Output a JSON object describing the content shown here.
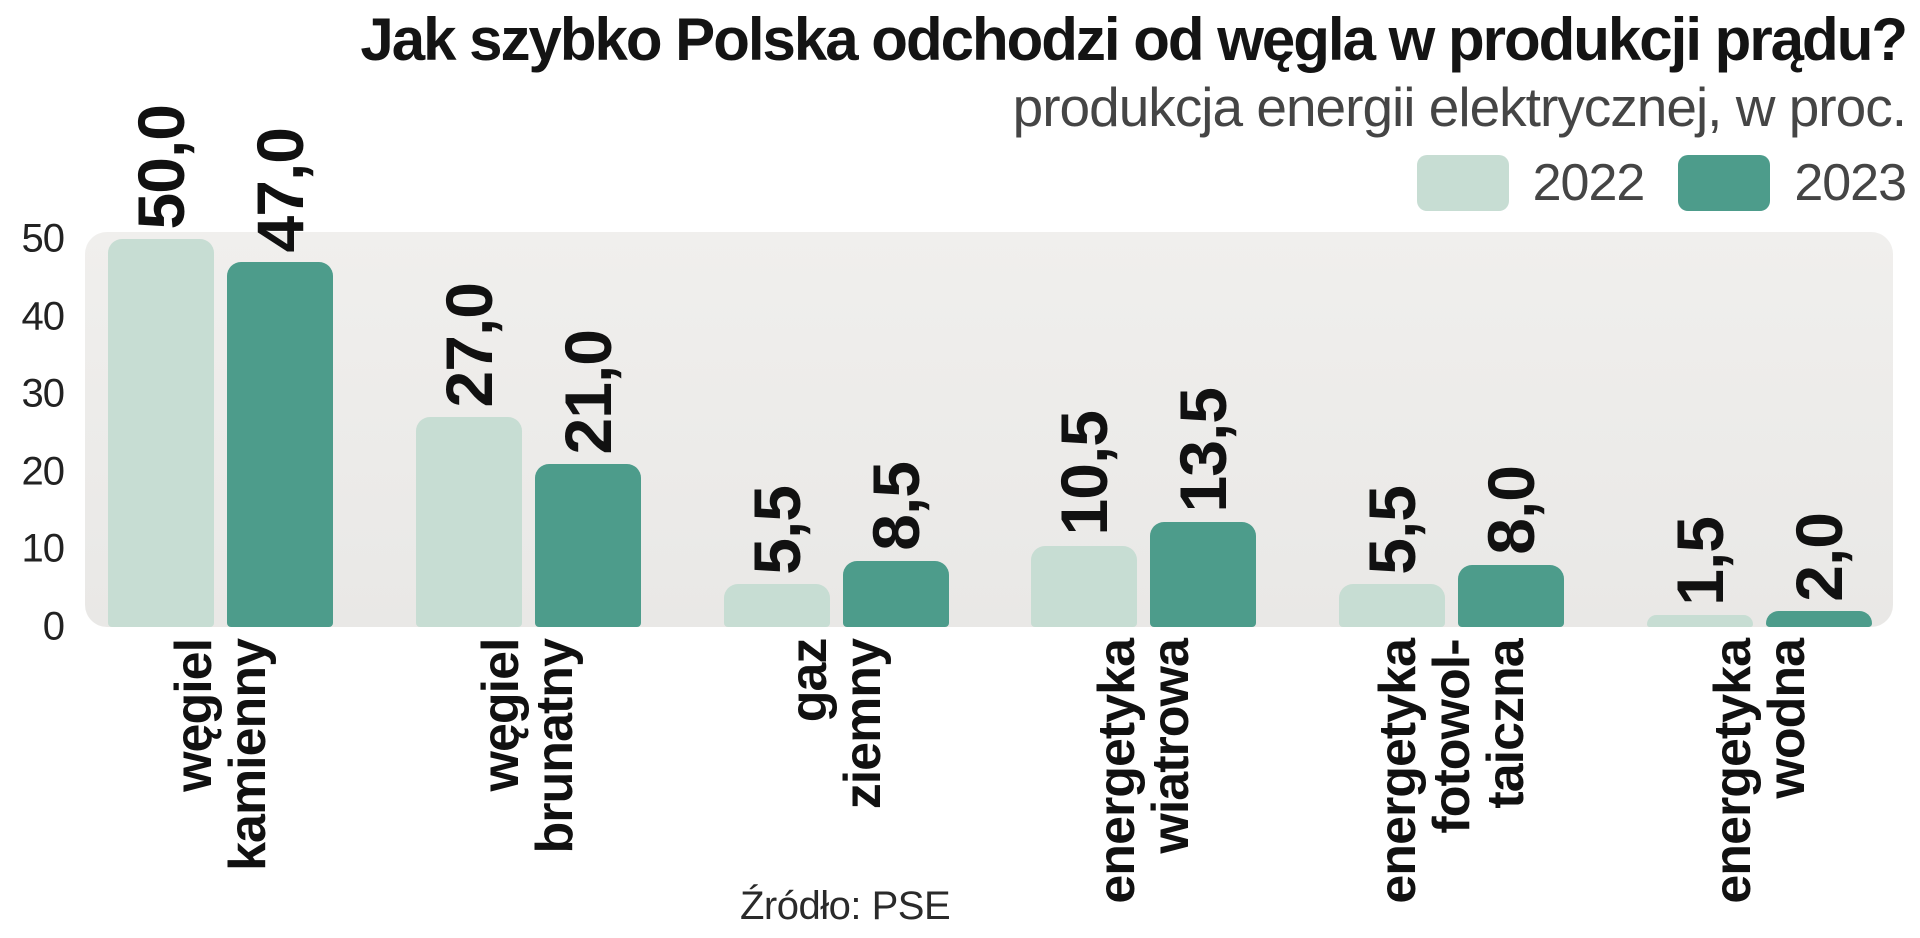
{
  "chart_data": {
    "type": "bar",
    "title": "Jak szybko Polska odchodzi od węgla w produkcji prądu?",
    "subtitle": "produkcja energii elektrycznej, w proc.",
    "source": "Źródło: PSE",
    "categories": [
      "węgiel\nkamienny",
      "węgiel\nbrunatny",
      "gaz\nziemny",
      "energetyka\nwiatrowa",
      "energetyka\nfotowol-\ntaiczna",
      "energetyka\nwodna"
    ],
    "series": [
      {
        "name": "2022",
        "color": "#c7ddd3",
        "values": [
          50.0,
          27.0,
          5.5,
          10.5,
          5.5,
          1.5
        ],
        "value_labels": [
          "50,0",
          "27,0",
          "5,5",
          "10,5",
          "5,5",
          "1,5"
        ]
      },
      {
        "name": "2023",
        "color": "#4d9c8b",
        "values": [
          47.0,
          21.0,
          8.5,
          13.5,
          8.0,
          2.0
        ],
        "value_labels": [
          "47,0",
          "21,0",
          "8,5",
          "13,5",
          "8,0",
          "2,0"
        ]
      }
    ],
    "y_ticks": [
      0,
      10,
      20,
      30,
      40,
      50
    ],
    "ylim": [
      0,
      50
    ],
    "grid": false,
    "legend_position": "top-right"
  },
  "colors": {
    "plot_background": "#ececea",
    "text_primary": "#111111",
    "text_secondary": "#454545"
  }
}
